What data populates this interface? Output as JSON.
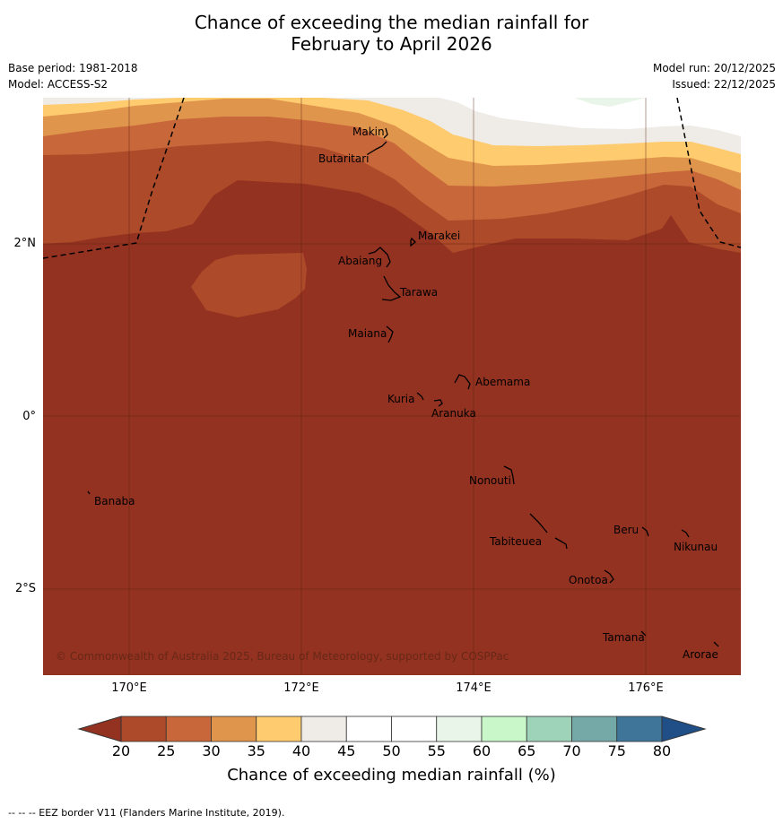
{
  "title": {
    "line1": "Chance of exceeding the median rainfall for",
    "line2": "February to April 2026"
  },
  "meta": {
    "base_period": "Base period: 1981-2018",
    "model": "Model: ACCESS-S2",
    "model_run": "Model run: 20/12/2025",
    "issued": "Issued: 22/12/2025"
  },
  "copyright": "© Commonwealth of Australia 2025, Bureau of Meteorology, supported by COSPPac",
  "axes": {
    "lat_labels": [
      "2°N",
      "0°",
      "2°S"
    ],
    "lon_labels": [
      "170°E",
      "172°E",
      "174°E",
      "176°E"
    ]
  },
  "places": [
    {
      "name": "Makin"
    },
    {
      "name": "Butaritari"
    },
    {
      "name": "Marakei"
    },
    {
      "name": "Abaiang"
    },
    {
      "name": "Tarawa"
    },
    {
      "name": "Maiana"
    },
    {
      "name": "Abemama"
    },
    {
      "name": "Kuria"
    },
    {
      "name": "Aranuka"
    },
    {
      "name": "Nonouti"
    },
    {
      "name": "Banaba"
    },
    {
      "name": "Beru"
    },
    {
      "name": "Nikunau"
    },
    {
      "name": "Tabiteuea"
    },
    {
      "name": "Onotoa"
    },
    {
      "name": "Tamana"
    },
    {
      "name": "Arorae"
    }
  ],
  "colorbar": {
    "ticks": [
      "20",
      "25",
      "30",
      "35",
      "40",
      "45",
      "50",
      "55",
      "60",
      "65",
      "70",
      "75",
      "80"
    ],
    "colors": [
      "#ad4a2a",
      "#c8673a",
      "#e0954c",
      "#fecb6f",
      "#efebe6",
      "#ffffff",
      "#ffffff",
      "#eaf5ea",
      "#c9f7c9",
      "#9fd3b9",
      "#74a9a8",
      "#3e7599"
    ],
    "under_color": "#933220",
    "over_color": "#1f4f86",
    "label": "Chance of exceeding median rainfall (%)"
  },
  "footer": "--  --  -- EEZ border V11 (Flanders Marine Institute, 2019)."
}
